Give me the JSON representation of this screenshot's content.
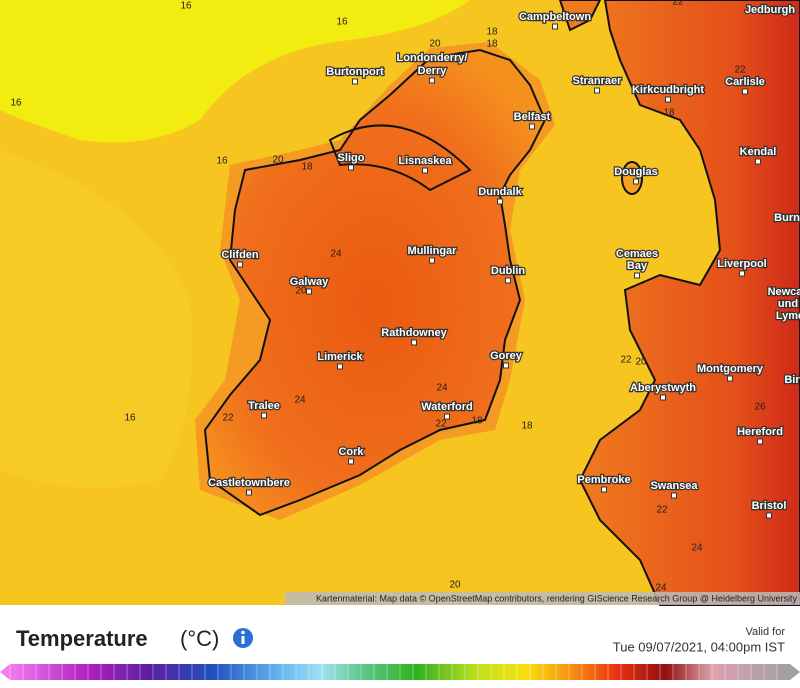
{
  "map": {
    "cities": [
      "Campbeltown",
      "Jedburgh",
      "Burtonport",
      "Londonderry/",
      "Derry",
      "Stranraer",
      "Kirkcudbright",
      "Carlisle",
      "Belfast",
      "Sligo",
      "Lisnaskea",
      "Kendal",
      "Dundalk",
      "Douglas",
      "Burn",
      "Clifden",
      "Mullingar",
      "Dublin",
      "Cemaes",
      "Bay",
      "Liverpool",
      "Newca",
      "und",
      "Lyme",
      "Galway",
      "Rathdowney",
      "Limerick",
      "Gorey",
      "Montgomery",
      "Bir",
      "Aberystwyth",
      "Tralee",
      "Waterford",
      "Hereford",
      "Cork",
      "Castletownbere",
      "Pembroke",
      "Swansea",
      "Bristol"
    ],
    "contour_labels": [
      "16",
      "16",
      "16",
      "16",
      "16",
      "20",
      "18",
      "18",
      "22",
      "22",
      "18",
      "20",
      "18",
      "24",
      "20",
      "22",
      "20",
      "24",
      "24",
      "22",
      "18",
      "18",
      "22",
      "26",
      "22",
      "24",
      "24",
      "20"
    ],
    "attribution": "Kartenmaterial: Map data © OpenStreetMap contributors, rendering GIScience Research Group @ Heidelberg University"
  },
  "legend": {
    "title": "Temperature",
    "unit": "(°C)",
    "valid_label": "Valid for",
    "valid_time": "Tue 09/07/2021, 04:00pm IST"
  }
}
